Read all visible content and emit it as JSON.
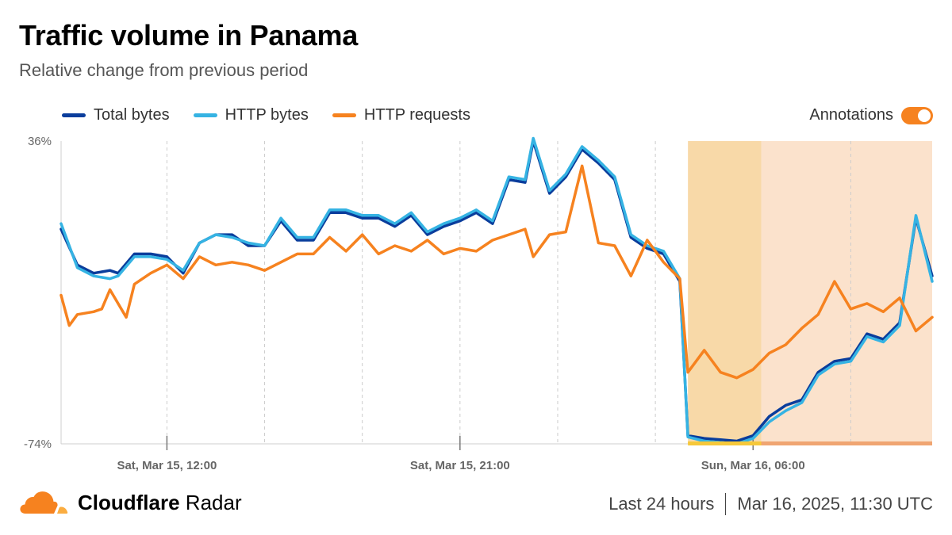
{
  "header": {
    "title": "Traffic volume in Panama",
    "subtitle": "Relative change from previous period"
  },
  "legend": {
    "items": [
      {
        "label": "Total bytes",
        "color": "#0a3d9c"
      },
      {
        "label": "HTTP bytes",
        "color": "#35b3e3"
      },
      {
        "label": "HTTP requests",
        "color": "#f6821f"
      }
    ]
  },
  "annotations": {
    "label": "Annotations",
    "enabled": true,
    "color": "#f6821f"
  },
  "footer": {
    "brand_bold": "Cloudflare",
    "brand_regular": " Radar",
    "range": "Last 24 hours",
    "timestamp": "Mar 16, 2025, 11:30 UTC"
  },
  "chart_data": {
    "type": "line",
    "title": "Traffic volume in Panama",
    "subtitle": "Relative change from previous period",
    "ylim": [
      -74,
      36
    ],
    "y_tick_labels": [
      "36%",
      "-74%"
    ],
    "x_start": "2025-03-15 08:45",
    "x_end": "2025-03-16 11:30",
    "x_tick_labels": [
      {
        "label": "Sat, Mar 15, 12:00",
        "time": "2025-03-15 12:00"
      },
      {
        "label": "Sat, Mar 15, 21:00",
        "time": "2025-03-15 21:00"
      },
      {
        "label": "Sun, Mar 16, 06:00",
        "time": "2025-03-16 06:00"
      }
    ],
    "gridlines_at": [
      "2025-03-15 12:00",
      "2025-03-15 15:00",
      "2025-03-15 18:00",
      "2025-03-15 21:00",
      "2025-03-16 00:00",
      "2025-03-16 03:00",
      "2025-03-16 09:00"
    ],
    "annotation_ranges": [
      {
        "start": "2025-03-16 04:00",
        "end": "2025-03-16 06:15",
        "color": "#f8d9a8"
      },
      {
        "start": "2025-03-16 06:15",
        "end": "2025-03-16 11:30",
        "color": "#fbe2cc"
      }
    ],
    "annotation_bars": [
      {
        "start": "2025-03-16 04:00",
        "end": "2025-03-16 06:15",
        "color": "#f6c83a"
      },
      {
        "start": "2025-03-16 06:15",
        "end": "2025-03-16 11:30",
        "color": "#f0a572"
      }
    ],
    "series": [
      {
        "name": "Total bytes",
        "color": "#0a3d9c",
        "points": [
          [
            "2025-03-15 08:45",
            4
          ],
          [
            "2025-03-15 09:15",
            -9
          ],
          [
            "2025-03-15 09:45",
            -12
          ],
          [
            "2025-03-15 10:15",
            -11
          ],
          [
            "2025-03-15 10:30",
            -12
          ],
          [
            "2025-03-15 11:00",
            -5
          ],
          [
            "2025-03-15 11:30",
            -5
          ],
          [
            "2025-03-15 12:00",
            -6
          ],
          [
            "2025-03-15 12:30",
            -12
          ],
          [
            "2025-03-15 13:00",
            -1
          ],
          [
            "2025-03-15 13:30",
            2
          ],
          [
            "2025-03-15 14:00",
            2
          ],
          [
            "2025-03-15 14:30",
            -2
          ],
          [
            "2025-03-15 15:00",
            -2
          ],
          [
            "2025-03-15 15:30",
            7
          ],
          [
            "2025-03-15 16:00",
            0
          ],
          [
            "2025-03-15 16:30",
            0
          ],
          [
            "2025-03-15 17:00",
            10
          ],
          [
            "2025-03-15 17:30",
            10
          ],
          [
            "2025-03-15 18:00",
            8
          ],
          [
            "2025-03-15 18:30",
            8
          ],
          [
            "2025-03-15 19:00",
            5
          ],
          [
            "2025-03-15 19:30",
            9
          ],
          [
            "2025-03-15 20:00",
            2
          ],
          [
            "2025-03-15 20:30",
            5
          ],
          [
            "2025-03-15 21:00",
            7
          ],
          [
            "2025-03-15 21:30",
            10
          ],
          [
            "2025-03-15 22:00",
            6
          ],
          [
            "2025-03-15 22:30",
            22
          ],
          [
            "2025-03-15 23:00",
            21
          ],
          [
            "2025-03-15 23:15",
            36
          ],
          [
            "2025-03-15 23:45",
            17
          ],
          [
            "2025-03-16 00:15",
            23
          ],
          [
            "2025-03-16 00:45",
            33
          ],
          [
            "2025-03-16 01:15",
            28
          ],
          [
            "2025-03-16 01:45",
            22
          ],
          [
            "2025-03-16 02:15",
            1
          ],
          [
            "2025-03-16 02:45",
            -3
          ],
          [
            "2025-03-16 03:15",
            -5
          ],
          [
            "2025-03-16 03:45",
            -15
          ],
          [
            "2025-03-16 04:00",
            -71
          ],
          [
            "2025-03-16 04:30",
            -72
          ],
          [
            "2025-03-16 05:00",
            -72.5
          ],
          [
            "2025-03-16 05:30",
            -73
          ],
          [
            "2025-03-16 06:00",
            -71
          ],
          [
            "2025-03-16 06:30",
            -64
          ],
          [
            "2025-03-16 07:00",
            -60
          ],
          [
            "2025-03-16 07:30",
            -58
          ],
          [
            "2025-03-16 08:00",
            -48
          ],
          [
            "2025-03-16 08:30",
            -44
          ],
          [
            "2025-03-16 09:00",
            -43
          ],
          [
            "2025-03-16 09:30",
            -34
          ],
          [
            "2025-03-16 10:00",
            -36
          ],
          [
            "2025-03-16 10:30",
            -30
          ],
          [
            "2025-03-16 11:00",
            8
          ],
          [
            "2025-03-16 11:30",
            -13
          ]
        ]
      },
      {
        "name": "HTTP bytes",
        "color": "#35b3e3",
        "points": [
          [
            "2025-03-15 08:45",
            6
          ],
          [
            "2025-03-15 09:15",
            -10
          ],
          [
            "2025-03-15 09:45",
            -13
          ],
          [
            "2025-03-15 10:15",
            -14
          ],
          [
            "2025-03-15 10:30",
            -13
          ],
          [
            "2025-03-15 11:00",
            -6
          ],
          [
            "2025-03-15 11:30",
            -6
          ],
          [
            "2025-03-15 12:00",
            -7
          ],
          [
            "2025-03-15 12:30",
            -11
          ],
          [
            "2025-03-15 13:00",
            -1
          ],
          [
            "2025-03-15 13:30",
            2
          ],
          [
            "2025-03-15 14:00",
            1
          ],
          [
            "2025-03-15 14:30",
            -1
          ],
          [
            "2025-03-15 15:00",
            -2
          ],
          [
            "2025-03-15 15:30",
            8
          ],
          [
            "2025-03-15 16:00",
            1
          ],
          [
            "2025-03-15 16:30",
            1
          ],
          [
            "2025-03-15 17:00",
            11
          ],
          [
            "2025-03-15 17:30",
            11
          ],
          [
            "2025-03-15 18:00",
            9
          ],
          [
            "2025-03-15 18:30",
            9
          ],
          [
            "2025-03-15 19:00",
            6
          ],
          [
            "2025-03-15 19:30",
            10
          ],
          [
            "2025-03-15 20:00",
            3
          ],
          [
            "2025-03-15 20:30",
            6
          ],
          [
            "2025-03-15 21:00",
            8
          ],
          [
            "2025-03-15 21:30",
            11
          ],
          [
            "2025-03-15 22:00",
            7
          ],
          [
            "2025-03-15 22:30",
            23
          ],
          [
            "2025-03-15 23:00",
            22
          ],
          [
            "2025-03-15 23:15",
            37
          ],
          [
            "2025-03-15 23:45",
            18
          ],
          [
            "2025-03-16 00:15",
            24
          ],
          [
            "2025-03-16 00:45",
            34
          ],
          [
            "2025-03-16 01:15",
            29
          ],
          [
            "2025-03-16 01:45",
            23
          ],
          [
            "2025-03-16 02:15",
            2
          ],
          [
            "2025-03-16 02:45",
            -2
          ],
          [
            "2025-03-16 03:15",
            -4
          ],
          [
            "2025-03-16 03:45",
            -14
          ],
          [
            "2025-03-16 04:00",
            -71.5
          ],
          [
            "2025-03-16 04:30",
            -73
          ],
          [
            "2025-03-16 05:00",
            -73.5
          ],
          [
            "2025-03-16 05:30",
            -74
          ],
          [
            "2025-03-16 06:00",
            -72
          ],
          [
            "2025-03-16 06:30",
            -66
          ],
          [
            "2025-03-16 07:00",
            -62
          ],
          [
            "2025-03-16 07:30",
            -59
          ],
          [
            "2025-03-16 08:00",
            -49
          ],
          [
            "2025-03-16 08:30",
            -45
          ],
          [
            "2025-03-16 09:00",
            -44
          ],
          [
            "2025-03-16 09:30",
            -35
          ],
          [
            "2025-03-16 10:00",
            -37
          ],
          [
            "2025-03-16 10:30",
            -31
          ],
          [
            "2025-03-16 11:00",
            9
          ],
          [
            "2025-03-16 11:30",
            -15
          ]
        ]
      },
      {
        "name": "HTTP requests",
        "color": "#f6821f",
        "points": [
          [
            "2025-03-15 08:45",
            -20
          ],
          [
            "2025-03-15 09:00",
            -31
          ],
          [
            "2025-03-15 09:15",
            -27
          ],
          [
            "2025-03-15 09:45",
            -26
          ],
          [
            "2025-03-15 10:00",
            -25
          ],
          [
            "2025-03-15 10:15",
            -18
          ],
          [
            "2025-03-15 10:45",
            -28
          ],
          [
            "2025-03-15 11:00",
            -16
          ],
          [
            "2025-03-15 11:30",
            -12
          ],
          [
            "2025-03-15 12:00",
            -9
          ],
          [
            "2025-03-15 12:30",
            -14
          ],
          [
            "2025-03-15 13:00",
            -6
          ],
          [
            "2025-03-15 13:30",
            -9
          ],
          [
            "2025-03-15 14:00",
            -8
          ],
          [
            "2025-03-15 14:30",
            -9
          ],
          [
            "2025-03-15 15:00",
            -11
          ],
          [
            "2025-03-15 15:30",
            -8
          ],
          [
            "2025-03-15 16:00",
            -5
          ],
          [
            "2025-03-15 16:30",
            -5
          ],
          [
            "2025-03-15 17:00",
            1
          ],
          [
            "2025-03-15 17:30",
            -4
          ],
          [
            "2025-03-15 18:00",
            2
          ],
          [
            "2025-03-15 18:30",
            -5
          ],
          [
            "2025-03-15 19:00",
            -2
          ],
          [
            "2025-03-15 19:30",
            -4
          ],
          [
            "2025-03-15 20:00",
            0
          ],
          [
            "2025-03-15 20:30",
            -5
          ],
          [
            "2025-03-15 21:00",
            -3
          ],
          [
            "2025-03-15 21:30",
            -4
          ],
          [
            "2025-03-15 22:00",
            0
          ],
          [
            "2025-03-15 22:30",
            2
          ],
          [
            "2025-03-15 23:00",
            4
          ],
          [
            "2025-03-15 23:15",
            -6
          ],
          [
            "2025-03-15 23:45",
            2
          ],
          [
            "2025-03-16 00:15",
            3
          ],
          [
            "2025-03-16 00:45",
            27
          ],
          [
            "2025-03-16 01:15",
            -1
          ],
          [
            "2025-03-16 01:45",
            -2
          ],
          [
            "2025-03-16 02:15",
            -13
          ],
          [
            "2025-03-16 02:45",
            0
          ],
          [
            "2025-03-16 03:15",
            -8
          ],
          [
            "2025-03-16 03:45",
            -14
          ],
          [
            "2025-03-16 04:00",
            -48
          ],
          [
            "2025-03-16 04:30",
            -40
          ],
          [
            "2025-03-16 05:00",
            -48
          ],
          [
            "2025-03-16 05:30",
            -50
          ],
          [
            "2025-03-16 06:00",
            -47
          ],
          [
            "2025-03-16 06:30",
            -41
          ],
          [
            "2025-03-16 07:00",
            -38
          ],
          [
            "2025-03-16 07:30",
            -32
          ],
          [
            "2025-03-16 08:00",
            -27
          ],
          [
            "2025-03-16 08:30",
            -15
          ],
          [
            "2025-03-16 09:00",
            -25
          ],
          [
            "2025-03-16 09:30",
            -23
          ],
          [
            "2025-03-16 10:00",
            -26
          ],
          [
            "2025-03-16 10:30",
            -21
          ],
          [
            "2025-03-16 11:00",
            -33
          ],
          [
            "2025-03-16 11:30",
            -28
          ]
        ]
      }
    ],
    "legend_placement": "top-left",
    "grid": true
  }
}
